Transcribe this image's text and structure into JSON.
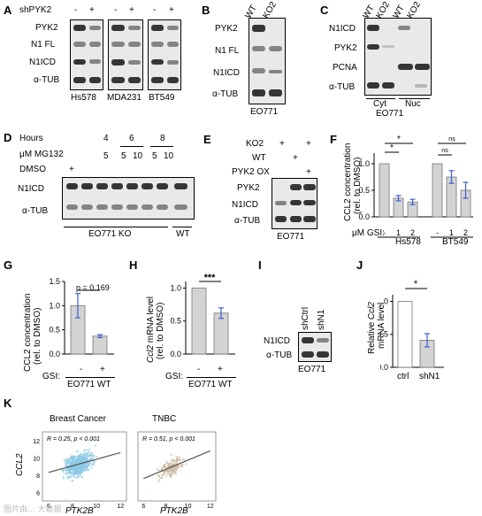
{
  "panels": {
    "A": {
      "letter": "A",
      "condition": "shPYK2",
      "signs": [
        "-",
        "+",
        "-",
        "+",
        "-",
        "+"
      ],
      "rows": [
        "PYK2",
        "N1 FL",
        "N1ICD",
        "α-TUB"
      ],
      "cell_lines": [
        "Hs578",
        "MDA231",
        "BT549"
      ]
    },
    "B": {
      "letter": "B",
      "cols": [
        "WT",
        "KO2"
      ],
      "rows": [
        "PYK2",
        "N1 FL",
        "N1ICD",
        "α-TUB"
      ],
      "footer": "EO771"
    },
    "C": {
      "letter": "C",
      "cols": [
        "WT",
        "KO2",
        "WT",
        "KO2"
      ],
      "rows": [
        "N1ICD",
        "PYK2",
        "PCNA",
        "α-TUB"
      ],
      "fractions": [
        "Cyt",
        "Nuc"
      ],
      "footer": "EO771"
    },
    "D": {
      "letter": "D",
      "hours_label": "Hours",
      "hours": [
        "4",
        "6",
        "8"
      ],
      "mg_label": "μM MG132",
      "mg_values": [
        "5",
        "5",
        "10",
        "5",
        "10"
      ],
      "dmso_label": "DMSO",
      "dmso_sign": "+",
      "rows": [
        "N1ICD",
        "α-TUB"
      ],
      "footer_ko": "EO771 KO",
      "footer_wt": "WT"
    },
    "E": {
      "letter": "E",
      "conditions": [
        {
          "label": "KO2",
          "signs": [
            "+",
            "",
            "+"
          ]
        },
        {
          "label": "WT",
          "signs": [
            "",
            "+",
            ""
          ]
        },
        {
          "label": "PYK2 OX",
          "signs": [
            "",
            "",
            "+"
          ]
        }
      ],
      "rows": [
        "PYK2",
        "N1ICD",
        "α-TUB"
      ],
      "footer": "EO771"
    },
    "F": {
      "letter": "F",
      "ylabel": "CCL2 concentration\n(rel. to DMSO)",
      "yticks": [
        "0.0",
        "0.5",
        "1.0"
      ],
      "xlabel": "μM GSI:",
      "groups": [
        "Hs578",
        "BT549"
      ],
      "sig": [
        "*",
        "*",
        "ns",
        "ns"
      ]
    },
    "G": {
      "letter": "G",
      "ylabel": "CCL2 concentration\n(rel. to DMSO)",
      "yticks": [
        "0.0",
        "0.5",
        "1.0",
        "1.5"
      ],
      "pvalue": "p = 0.169",
      "xlabel": "GSI:",
      "signs": [
        "-",
        "+"
      ],
      "group": "EO771 WT"
    },
    "H": {
      "letter": "H",
      "ylabel": "Ccl2 mRNA level\n(rel. to DMSO)",
      "yticks": [
        "0.0",
        "0.5",
        "1.0"
      ],
      "sig": "***",
      "xlabel": "GSI:",
      "signs": [
        "-",
        "+"
      ],
      "group": "EO771 WT"
    },
    "I": {
      "letter": "I",
      "cols": [
        "shCtrl",
        "shN1"
      ],
      "rows": [
        "N1ICD",
        "α-TUB"
      ],
      "footer": "EO771"
    },
    "J": {
      "letter": "J",
      "ylabel": "Relative Ccl2\nmRNA level",
      "yticks": [
        "0.0",
        "0.5",
        "1.0"
      ],
      "sig": "*",
      "categories": [
        "ctrl",
        "shN1"
      ]
    },
    "K": {
      "letter": "K",
      "titles": [
        "Breast Cancer",
        "TNBC"
      ],
      "ylabel": "CCL2",
      "xlabel": "PTK2B",
      "stats": [
        "R = 0.25, p < 0.001",
        "R = 0.51, p < 0.001"
      ],
      "yticks": [
        "6",
        "8",
        "10",
        "12"
      ],
      "xticks": [
        "6",
        "8",
        "10",
        "12"
      ]
    }
  },
  "chart_data": [
    {
      "type": "bar",
      "panel": "F",
      "title": "",
      "ylabel": "CCL2 concentration (rel. to DMSO)",
      "xlabel": "μM GSI",
      "ylim": [
        0,
        1.2
      ],
      "categories": [
        "Hs578 -",
        "Hs578 1",
        "Hs578 2",
        "BT549 -",
        "BT549 1",
        "BT549 2"
      ],
      "values": [
        1.0,
        0.35,
        0.28,
        1.0,
        0.75,
        0.5
      ],
      "errors": [
        0,
        0.05,
        0.05,
        0,
        0.12,
        0.15
      ]
    },
    {
      "type": "bar",
      "panel": "G",
      "title": "",
      "ylabel": "CCL2 concentration (rel. to DMSO)",
      "ylim": [
        0,
        1.5
      ],
      "categories": [
        "-",
        "+"
      ],
      "values": [
        1.0,
        0.37
      ],
      "errors": [
        0.25,
        0.03
      ]
    },
    {
      "type": "bar",
      "panel": "H",
      "title": "",
      "ylabel": "Ccl2 mRNA level (rel. to DMSO)",
      "ylim": [
        0,
        1.1
      ],
      "categories": [
        "-",
        "+"
      ],
      "values": [
        1.0,
        0.62
      ],
      "errors": [
        0,
        0.08
      ]
    },
    {
      "type": "bar",
      "panel": "J",
      "title": "",
      "ylabel": "Relative Ccl2 mRNA level",
      "ylim": [
        0,
        1.1
      ],
      "categories": [
        "ctrl",
        "shN1"
      ],
      "values": [
        1.0,
        0.41
      ],
      "errors": [
        0,
        0.1
      ]
    },
    {
      "type": "scatter",
      "panel": "K",
      "title": "Breast Cancer",
      "xlabel": "PTK2B",
      "ylabel": "CCL2",
      "xlim": [
        5.5,
        12.5
      ],
      "ylim": [
        5,
        13
      ],
      "trend": [
        [
          6,
          8.3
        ],
        [
          12,
          10.6
        ]
      ],
      "R": 0.25
    },
    {
      "type": "scatter",
      "panel": "K",
      "title": "TNBC",
      "xlabel": "PTK2B",
      "ylabel": "CCL2",
      "xlim": [
        5.5,
        12.5
      ],
      "ylim": [
        5,
        13
      ],
      "trend": [
        [
          6,
          7.6
        ],
        [
          12,
          10.8
        ]
      ],
      "R": 0.51
    }
  ],
  "watermark": "图片由… 大数据"
}
